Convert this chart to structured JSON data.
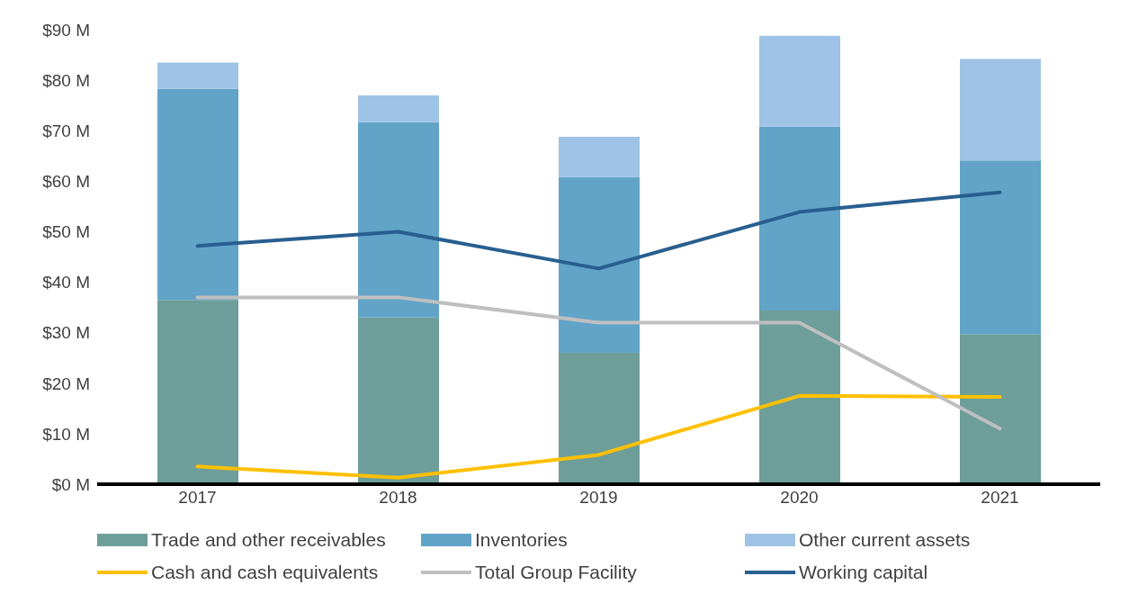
{
  "chart_data": {
    "type": "bar",
    "stacked": true,
    "categories": [
      "2017",
      "2018",
      "2019",
      "2020",
      "2021"
    ],
    "series": [
      {
        "name": "Trade and other receivables",
        "color": "#6d9e99",
        "values": [
          36.5,
          33,
          26,
          34.4,
          29.7
        ]
      },
      {
        "name": "Inventories",
        "color": "#62a3c8",
        "values": [
          41.8,
          38.7,
          34.8,
          36.4,
          34.4
        ]
      },
      {
        "name": "Other current assets",
        "color": "#9fc3e6",
        "values": [
          5.2,
          5.3,
          8,
          18,
          20.1
        ]
      },
      {
        "name": "Cash and cash equivalents",
        "type": "line",
        "color": "#ffc000",
        "values": [
          3.5,
          1.3,
          5.8,
          17.5,
          17.3
        ]
      },
      {
        "name": "Total Group Facility",
        "type": "line",
        "color": "#bfbfbf",
        "values": [
          37,
          37,
          32,
          32,
          11
        ]
      },
      {
        "name": "Working capital",
        "type": "line",
        "color": "#285f8f",
        "values": [
          47.2,
          50,
          42.7,
          53.9,
          57.8
        ]
      }
    ],
    "ylim": [
      0,
      90
    ],
    "yticks": [
      {
        "value": 0,
        "label": "$0 M"
      },
      {
        "value": 10,
        "label": "$10 M"
      },
      {
        "value": 20,
        "label": "$20 M"
      },
      {
        "value": 30,
        "label": "$30 M"
      },
      {
        "value": 40,
        "label": "$40 M"
      },
      {
        "value": 50,
        "label": "$50 M"
      },
      {
        "value": 60,
        "label": "$60 M"
      },
      {
        "value": 70,
        "label": "$70 M"
      },
      {
        "value": 80,
        "label": "$80 M"
      },
      {
        "value": 90,
        "label": "$90 M"
      }
    ],
    "grid": false,
    "legend": "bottom",
    "marker": "none",
    "line_style": "solid"
  }
}
